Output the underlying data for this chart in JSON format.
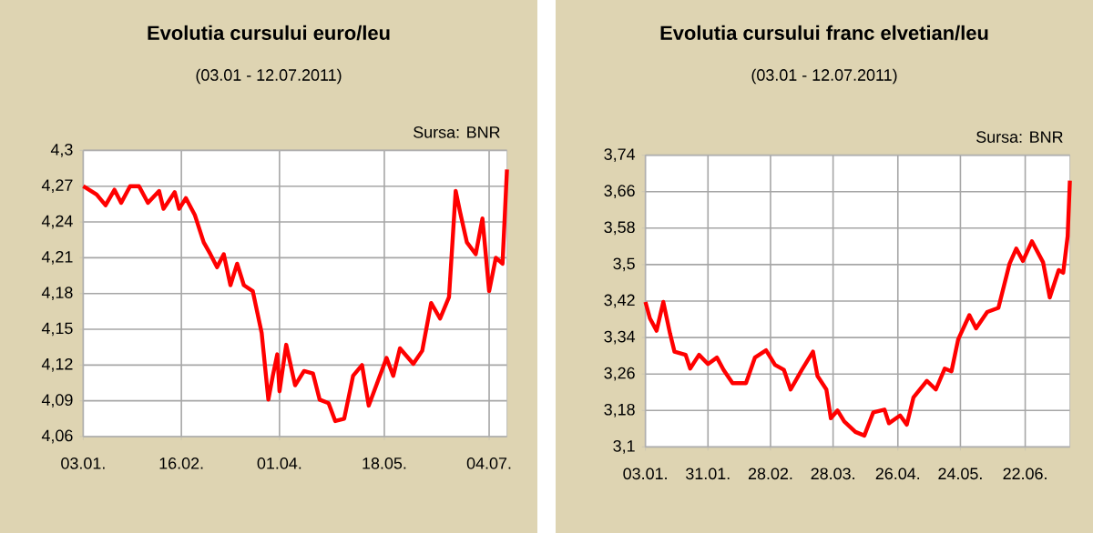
{
  "chart_data": [
    {
      "type": "line",
      "title": "Evolutia cursului euro/leu",
      "subtitle": "(03.01 - 12.07.2011)",
      "annotations": [
        "Sursa: BNR"
      ],
      "color": "#ff0000",
      "marker": "none",
      "grid": true,
      "x": [
        "2011-01-03",
        "2011-01-09",
        "2011-01-13",
        "2011-01-17",
        "2011-01-20",
        "2011-01-24",
        "2011-01-28",
        "2011-02-01",
        "2011-02-06",
        "2011-02-08",
        "2011-02-13",
        "2011-02-15",
        "2011-02-18",
        "2011-02-22",
        "2011-02-26",
        "2011-03-01",
        "2011-03-04",
        "2011-03-07",
        "2011-03-10",
        "2011-03-13",
        "2011-03-16",
        "2011-03-20",
        "2011-03-24",
        "2011-03-27",
        "2011-03-29",
        "2011-03-31",
        "2011-04-01",
        "2011-04-04",
        "2011-04-08",
        "2011-04-12",
        "2011-04-16",
        "2011-04-19",
        "2011-04-23",
        "2011-04-26",
        "2011-04-30",
        "2011-05-04",
        "2011-05-08",
        "2011-05-11",
        "2011-05-15",
        "2011-05-19",
        "2011-05-22",
        "2011-05-25",
        "2011-05-31",
        "2011-06-04",
        "2011-06-08",
        "2011-06-12",
        "2011-06-16",
        "2011-06-19",
        "2011-06-21",
        "2011-06-24",
        "2011-06-28",
        "2011-07-01",
        "2011-07-04",
        "2011-07-07",
        "2011-07-10",
        "2011-07-12"
      ],
      "values": [
        4.27,
        4.263,
        4.254,
        4.267,
        4.256,
        4.27,
        4.27,
        4.256,
        4.266,
        4.251,
        4.265,
        4.251,
        4.26,
        4.246,
        4.223,
        4.213,
        4.202,
        4.213,
        4.187,
        4.205,
        4.187,
        4.182,
        4.147,
        4.091,
        4.111,
        4.129,
        4.098,
        4.137,
        4.103,
        4.115,
        4.113,
        4.091,
        4.088,
        4.073,
        4.075,
        4.111,
        4.12,
        4.086,
        4.106,
        4.126,
        4.111,
        4.134,
        4.121,
        4.132,
        4.172,
        4.159,
        4.177,
        4.266,
        4.248,
        4.223,
        4.213,
        4.243,
        4.182,
        4.21,
        4.205,
        4.284
      ],
      "xlim": [
        "2011-01-03",
        "2011-07-12"
      ],
      "xticks": [
        {
          "value": "2011-01-03",
          "label": "03.01."
        },
        {
          "value": "2011-02-16",
          "label": "16.02."
        },
        {
          "value": "2011-04-01",
          "label": "01.04."
        },
        {
          "value": "2011-05-18",
          "label": "18.05."
        },
        {
          "value": "2011-07-04",
          "label": "04.07."
        }
      ],
      "ylim": [
        4.06,
        4.3
      ],
      "yticks": [
        {
          "value": 4.06,
          "label": "4,06"
        },
        {
          "value": 4.09,
          "label": "4,09"
        },
        {
          "value": 4.12,
          "label": "4,12"
        },
        {
          "value": 4.15,
          "label": "4,15"
        },
        {
          "value": 4.18,
          "label": "4,18"
        },
        {
          "value": 4.21,
          "label": "4,21"
        },
        {
          "value": 4.24,
          "label": "4,24"
        },
        {
          "value": 4.27,
          "label": "4,27"
        },
        {
          "value": 4.3,
          "label": "4,3"
        }
      ]
    },
    {
      "type": "line",
      "title": "Evolutia cursului franc elvetian/leu",
      "subtitle": "(03.01 - 12.07.2011)",
      "annotations": [
        "Sursa: BNR"
      ],
      "color": "#ff0000",
      "marker": "none",
      "grid": true,
      "x": [
        "2011-01-03",
        "2011-01-05",
        "2011-01-08",
        "2011-01-11",
        "2011-01-14",
        "2011-01-16",
        "2011-01-21",
        "2011-01-23",
        "2011-01-27",
        "2011-01-31",
        "2011-02-04",
        "2011-02-07",
        "2011-02-11",
        "2011-02-17",
        "2011-02-21",
        "2011-02-26",
        "2011-03-02",
        "2011-03-06",
        "2011-03-09",
        "2011-03-14",
        "2011-03-19",
        "2011-03-21",
        "2011-03-25",
        "2011-03-27",
        "2011-03-30",
        "2011-04-02",
        "2011-04-07",
        "2011-04-11",
        "2011-04-15",
        "2011-04-20",
        "2011-04-22",
        "2011-04-27",
        "2011-04-30",
        "2011-05-03",
        "2011-05-09",
        "2011-05-13",
        "2011-05-17",
        "2011-05-20",
        "2011-05-23",
        "2011-05-28",
        "2011-05-31",
        "2011-06-05",
        "2011-06-10",
        "2011-06-15",
        "2011-06-18",
        "2011-06-21",
        "2011-06-25",
        "2011-06-30",
        "2011-07-03",
        "2011-07-07",
        "2011-07-09",
        "2011-07-11",
        "2011-07-12"
      ],
      "values": [
        3.418,
        3.382,
        3.355,
        3.418,
        3.349,
        3.309,
        3.302,
        3.272,
        3.302,
        3.282,
        3.296,
        3.269,
        3.24,
        3.24,
        3.296,
        3.312,
        3.28,
        3.269,
        3.226,
        3.269,
        3.309,
        3.256,
        3.226,
        3.163,
        3.18,
        3.156,
        3.133,
        3.125,
        3.176,
        3.182,
        3.152,
        3.169,
        3.149,
        3.209,
        3.245,
        3.226,
        3.272,
        3.266,
        3.336,
        3.389,
        3.36,
        3.396,
        3.405,
        3.502,
        3.535,
        3.508,
        3.551,
        3.505,
        3.428,
        3.488,
        3.482,
        3.562,
        3.684
      ],
      "xlim": [
        "2011-01-03",
        "2011-07-12"
      ],
      "xticks": [
        {
          "value": "2011-01-03",
          "label": "03.01."
        },
        {
          "value": "2011-01-31",
          "label": "31.01."
        },
        {
          "value": "2011-02-28",
          "label": "28.02."
        },
        {
          "value": "2011-03-28",
          "label": "28.03."
        },
        {
          "value": "2011-04-26",
          "label": "26.04."
        },
        {
          "value": "2011-05-24",
          "label": "24.05."
        },
        {
          "value": "2011-06-22",
          "label": "22.06."
        }
      ],
      "ylim": [
        3.1,
        3.74
      ],
      "yticks": [
        {
          "value": 3.1,
          "label": "3,1"
        },
        {
          "value": 3.18,
          "label": "3,18"
        },
        {
          "value": 3.26,
          "label": "3,26"
        },
        {
          "value": 3.34,
          "label": "3,34"
        },
        {
          "value": 3.42,
          "label": "3,42"
        },
        {
          "value": 3.5,
          "label": "3,5"
        },
        {
          "value": 3.58,
          "label": "3,58"
        },
        {
          "value": 3.66,
          "label": "3,66"
        },
        {
          "value": 3.74,
          "label": "3,74"
        }
      ]
    }
  ]
}
